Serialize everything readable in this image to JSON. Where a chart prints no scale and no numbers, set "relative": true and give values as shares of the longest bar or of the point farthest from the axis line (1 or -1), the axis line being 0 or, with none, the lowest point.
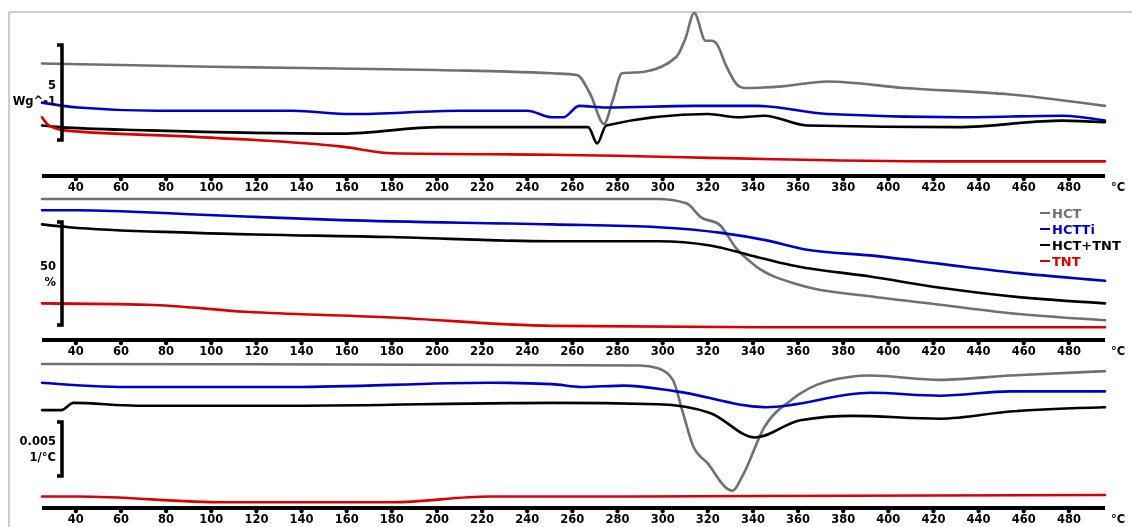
{
  "chart_data": [
    {
      "type": "line",
      "relative": true,
      "xlim": [
        25,
        496
      ],
      "xticks": [
        40,
        60,
        80,
        100,
        120,
        140,
        160,
        180,
        200,
        220,
        240,
        260,
        280,
        300,
        320,
        340,
        360,
        380,
        400,
        420,
        440,
        460,
        480
      ],
      "xlabel": "°C",
      "annotations": [
        "5",
        "Wg^-1"
      ],
      "legend": false,
      "series": [
        {
          "color": "#707070",
          "x": [
            25,
            100,
            200,
            251,
            262,
            268,
            274,
            278,
            282,
            292,
            306,
            310,
            314,
            319,
            322,
            324,
            328,
            333,
            336,
            353,
            373,
            407,
            454,
            496
          ],
          "values": [
            0.69,
            0.67,
            0.65,
            0.63,
            0.62,
            0.5,
            0.32,
            0.47,
            0.63,
            0.64,
            0.73,
            0.84,
            1.0,
            0.83,
            0.83,
            0.81,
            0.68,
            0.56,
            0.54,
            0.55,
            0.58,
            0.54,
            0.5,
            0.43
          ]
        },
        {
          "color": "#0000cc",
          "x": [
            25,
            41,
            76,
            136,
            162,
            210,
            240,
            251,
            256,
            263,
            275,
            314,
            342,
            373,
            432,
            477,
            496
          ],
          "values": [
            0.45,
            0.42,
            0.4,
            0.4,
            0.38,
            0.4,
            0.4,
            0.36,
            0.36,
            0.43,
            0.42,
            0.43,
            0.43,
            0.38,
            0.36,
            0.37,
            0.34
          ]
        },
        {
          "color": "#000000",
          "x": [
            25,
            33,
            72,
            158,
            201,
            251,
            267,
            271,
            275,
            320,
            334,
            345,
            364,
            431,
            477,
            496
          ],
          "values": [
            0.31,
            0.3,
            0.28,
            0.26,
            0.3,
            0.3,
            0.3,
            0.2,
            0.31,
            0.38,
            0.36,
            0.37,
            0.31,
            0.3,
            0.34,
            0.33
          ]
        },
        {
          "color": "#dd0000",
          "x": [
            25,
            28,
            35,
            93,
            158,
            180,
            251,
            423,
            496
          ],
          "values": [
            0.36,
            0.31,
            0.28,
            0.24,
            0.18,
            0.14,
            0.13,
            0.09,
            0.09
          ]
        }
      ]
    },
    {
      "type": "line",
      "relative": true,
      "xlim": [
        25,
        496
      ],
      "xticks": [
        40,
        60,
        80,
        100,
        120,
        140,
        160,
        180,
        200,
        220,
        240,
        260,
        280,
        300,
        320,
        340,
        360,
        380,
        400,
        420,
        440,
        460,
        480
      ],
      "xlabel": "°C",
      "annotations": [
        "50",
        "%"
      ],
      "legend": "top right",
      "series": [
        {
          "name": "HCT",
          "color": "#707070",
          "x": [
            25,
            298,
            310.5,
            317,
            325,
            332.6,
            341.6,
            360.7,
            391.8,
            423,
            454,
            496
          ],
          "values": [
            1.0,
            1.0,
            0.97,
            0.87,
            0.82,
            0.65,
            0.52,
            0.39,
            0.31,
            0.25,
            0.19,
            0.14
          ]
        },
        {
          "name": "HCTTi",
          "color": "#0000cc",
          "x": [
            25,
            41,
            93,
            158,
            251,
            298,
            326,
            345,
            364,
            392,
            423,
            454,
            496
          ],
          "values": [
            0.92,
            0.92,
            0.89,
            0.85,
            0.82,
            0.8,
            0.76,
            0.71,
            0.64,
            0.6,
            0.54,
            0.48,
            0.42
          ]
        },
        {
          "name": "HCT+TNT",
          "color": "#000000",
          "x": [
            25,
            37,
            93,
            180,
            251,
            298,
            321,
            339,
            357,
            392,
            423,
            454,
            496
          ],
          "values": [
            0.82,
            0.8,
            0.76,
            0.73,
            0.7,
            0.7,
            0.67,
            0.6,
            0.53,
            0.45,
            0.37,
            0.31,
            0.26
          ]
        },
        {
          "name": "TNT",
          "color": "#dd0000",
          "x": [
            25,
            72,
            115,
            180,
            251,
            352,
            496
          ],
          "values": [
            0.26,
            0.25,
            0.2,
            0.16,
            0.1,
            0.09,
            0.09
          ]
        }
      ]
    },
    {
      "type": "line",
      "relative": true,
      "xlim": [
        25,
        496
      ],
      "xticks": [
        40,
        60,
        80,
        100,
        120,
        140,
        160,
        180,
        200,
        220,
        240,
        260,
        280,
        300,
        320,
        340,
        360,
        380,
        400,
        420,
        440,
        460,
        480
      ],
      "xlabel": "°C",
      "annotations": [
        "0.005",
        "1/°C"
      ],
      "legend": false,
      "series": [
        {
          "color": "#707070",
          "x": [
            25,
            290,
            298,
            304.5,
            309,
            313.5,
            320,
            329,
            331,
            335.6,
            345,
            357,
            373,
            392,
            423,
            454,
            496
          ],
          "values": [
            1.0,
            0.99,
            0.97,
            0.89,
            0.66,
            0.43,
            0.31,
            0.13,
            0.12,
            0.23,
            0.56,
            0.75,
            0.88,
            0.92,
            0.89,
            0.92,
            0.95
          ]
        },
        {
          "color": "#0000cc",
          "x": [
            25,
            63,
            136,
            223,
            251,
            264,
            283,
            306,
            346,
            392,
            423,
            454,
            496
          ],
          "values": [
            0.87,
            0.84,
            0.84,
            0.87,
            0.86,
            0.84,
            0.85,
            0.81,
            0.7,
            0.8,
            0.78,
            0.81,
            0.81
          ]
        },
        {
          "color": "#000000",
          "x": [
            25,
            33.5,
            39,
            67,
            136,
            251,
            298,
            321,
            341,
            361,
            384,
            423,
            454,
            496
          ],
          "values": [
            0.68,
            0.68,
            0.73,
            0.71,
            0.71,
            0.73,
            0.72,
            0.66,
            0.49,
            0.61,
            0.64,
            0.62,
            0.67,
            0.7
          ]
        },
        {
          "color": "#dd0000",
          "x": [
            25,
            41,
            106,
            180,
            223,
            251,
            496
          ],
          "values": [
            0.08,
            0.08,
            0.04,
            0.04,
            0.08,
            0.08,
            0.09
          ]
        }
      ]
    }
  ]
}
